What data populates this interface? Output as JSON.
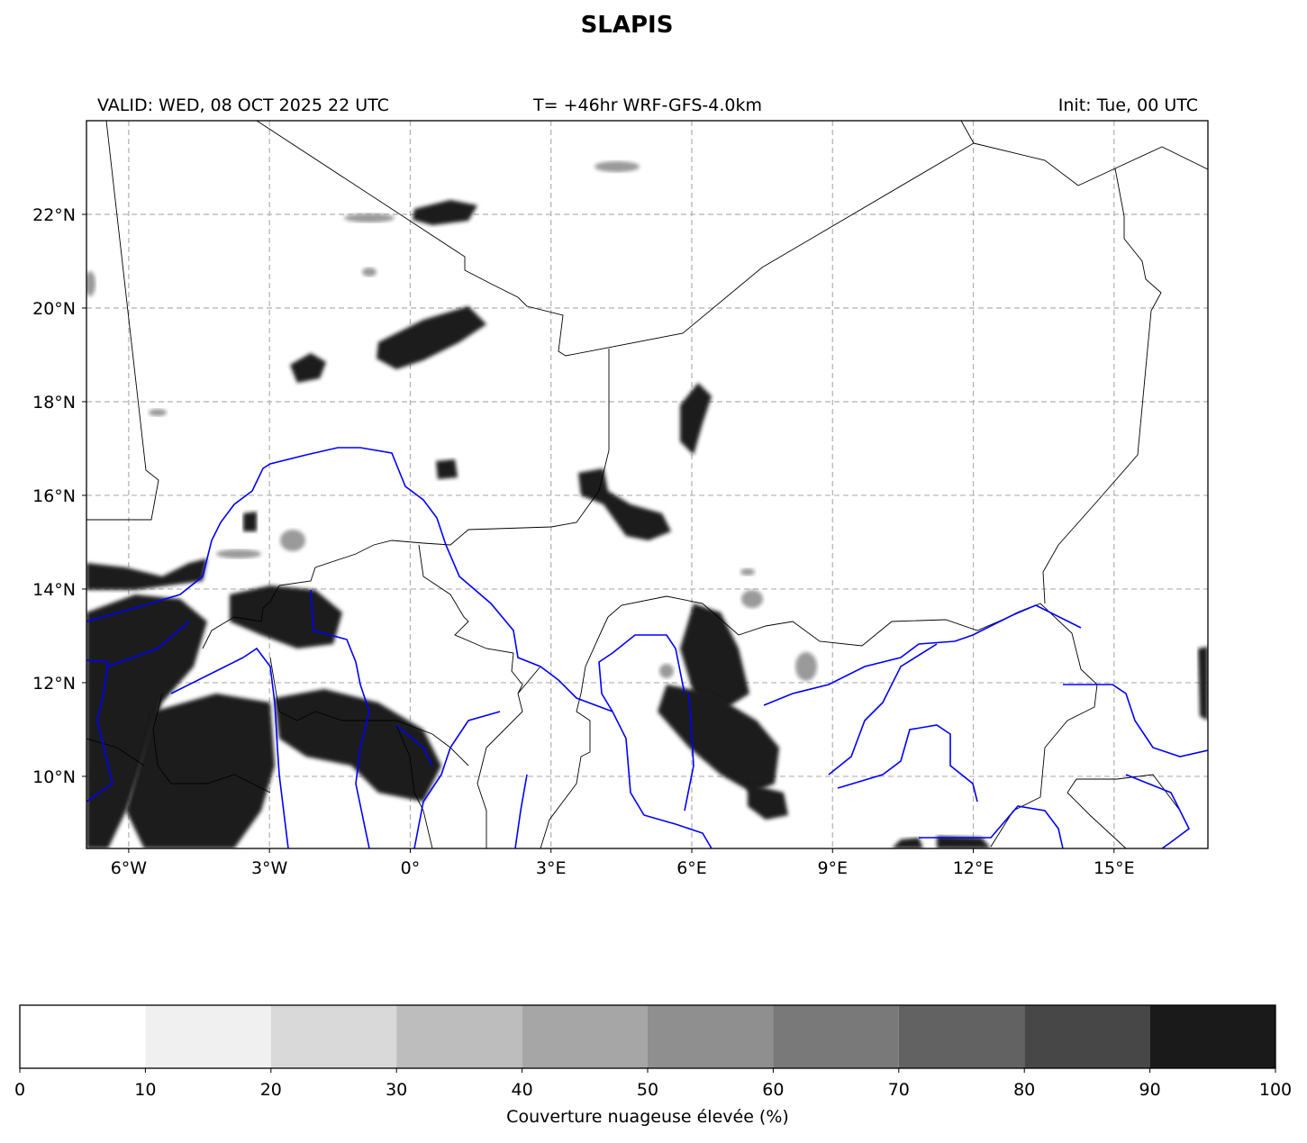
{
  "map": {
    "title": "SLAPIS",
    "valid": "VALID: WED, 08 OCT 2025 22 UTC",
    "lead": "T= +46hr WRF-GFS-4.0km",
    "init": "Init: Tue, 00 UTC",
    "xlim": [
      -6.9,
      17.0
    ],
    "ylim": [
      8.46,
      24.0
    ],
    "xticks": [
      {
        "value": -6,
        "label": "6°W"
      },
      {
        "value": -3,
        "label": "3°W"
      },
      {
        "value": 0,
        "label": "0°"
      },
      {
        "value": 3,
        "label": "3°E"
      },
      {
        "value": 6,
        "label": "6°E"
      },
      {
        "value": 9,
        "label": "9°E"
      },
      {
        "value": 12,
        "label": "12°E"
      },
      {
        "value": 15,
        "label": "15°E"
      }
    ],
    "yticks": [
      {
        "value": 10,
        "label": "10°N"
      },
      {
        "value": 12,
        "label": "12°N"
      },
      {
        "value": 14,
        "label": "14°N"
      },
      {
        "value": 16,
        "label": "16°N"
      },
      {
        "value": 18,
        "label": "18°N"
      },
      {
        "value": 20,
        "label": "20°N"
      },
      {
        "value": 22,
        "label": "22°N"
      }
    ],
    "grid": true
  },
  "colorbar": {
    "label": "Couverture nuageuse élevée (%)",
    "ticks": [
      0,
      10,
      20,
      30,
      40,
      50,
      60,
      70,
      80,
      90,
      100
    ],
    "colors": [
      "#ffffff",
      "#f0f0f0",
      "#d9d9d9",
      "#bdbdbd",
      "#a6a6a6",
      "#8f8f8f",
      "#797979",
      "#626262",
      "#474747",
      "#1a1a1a"
    ]
  }
}
